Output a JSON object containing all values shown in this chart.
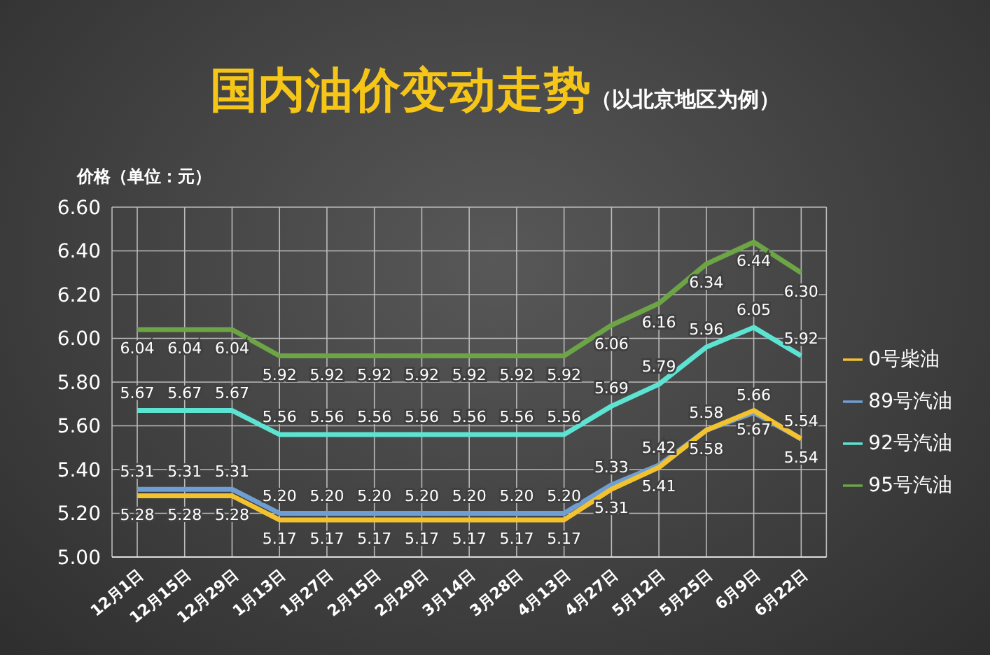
{
  "chart_data": {
    "type": "line",
    "title": "国内油价变动走势",
    "subtitle": "（以北京地区为例）",
    "ylabel": "价格（单位：元）",
    "categories": [
      "12月1日",
      "12月15日",
      "12月29日",
      "1月13日",
      "1月27日",
      "2月15日",
      "2月29日",
      "3月14日",
      "3月28日",
      "4月13日",
      "4月27日",
      "5月12日",
      "5月25日",
      "6月9日",
      "6月22日"
    ],
    "series": [
      {
        "name": "89号汽油",
        "color": "#6f9fd2",
        "values": [
          5.31,
          5.31,
          5.31,
          5.2,
          5.2,
          5.2,
          5.2,
          5.2,
          5.2,
          5.2,
          5.33,
          5.42,
          5.58,
          5.66,
          5.54
        ],
        "value_labels": [
          "5.31",
          "5.31",
          "5.31",
          "5.20",
          "5.20",
          "5.20",
          "5.20",
          "5.20",
          "5.20",
          "5.20",
          "5.33",
          "5.42",
          "5.58",
          "5.66",
          "5.54"
        ]
      },
      {
        "name": "92号汽油",
        "color": "#5de3d2",
        "values": [
          5.67,
          5.67,
          5.67,
          5.56,
          5.56,
          5.56,
          5.56,
          5.56,
          5.56,
          5.56,
          5.69,
          5.79,
          5.96,
          6.05,
          5.92
        ],
        "value_labels": [
          "5.67",
          "5.67",
          "5.67",
          "5.56",
          "5.56",
          "5.56",
          "5.56",
          "5.56",
          "5.56",
          "5.56",
          "5.69",
          "5.79",
          "5.96",
          "6.05",
          "5.92"
        ]
      },
      {
        "name": "95号汽油",
        "color": "#6ca446",
        "values": [
          6.04,
          6.04,
          6.04,
          5.92,
          5.92,
          5.92,
          5.92,
          5.92,
          5.92,
          5.92,
          6.06,
          6.16,
          6.34,
          6.44,
          6.3
        ],
        "value_labels": [
          "6.04",
          "6.04",
          "6.04",
          "5.92",
          "5.92",
          "5.92",
          "5.92",
          "5.92",
          "5.92",
          "5.92",
          "6.06",
          "6.16",
          "6.34",
          "6.44",
          "6.30"
        ]
      },
      {
        "name": "0号柴油",
        "color": "#f2c230",
        "values": [
          5.28,
          5.28,
          5.28,
          5.17,
          5.17,
          5.17,
          5.17,
          5.17,
          5.17,
          5.17,
          5.31,
          5.41,
          5.58,
          5.67,
          5.54
        ],
        "value_labels": [
          "5.28",
          "5.28",
          "5.28",
          "5.17",
          "5.17",
          "5.17",
          "5.17",
          "5.17",
          "5.17",
          "5.17",
          "5.31",
          "5.41",
          "5.58",
          "5.67",
          "5.54"
        ]
      }
    ],
    "ylim": [
      5,
      6.6
    ],
    "yticks": [
      {
        "value": 5,
        "label": "5.00"
      },
      {
        "value": 5.2,
        "label": "5.20"
      },
      {
        "value": 5.4,
        "label": "5.40"
      },
      {
        "value": 5.6,
        "label": "5.60"
      },
      {
        "value": 5.8,
        "label": "5.80"
      },
      {
        "value": 6,
        "label": "6.00"
      },
      {
        "value": 6.2,
        "label": "6.20"
      },
      {
        "value": 6.4,
        "label": "6.40"
      },
      {
        "value": 6.6,
        "label": "6.60"
      }
    ],
    "grid": true,
    "legend": "right",
    "marker": "none",
    "line_style": "solid"
  }
}
